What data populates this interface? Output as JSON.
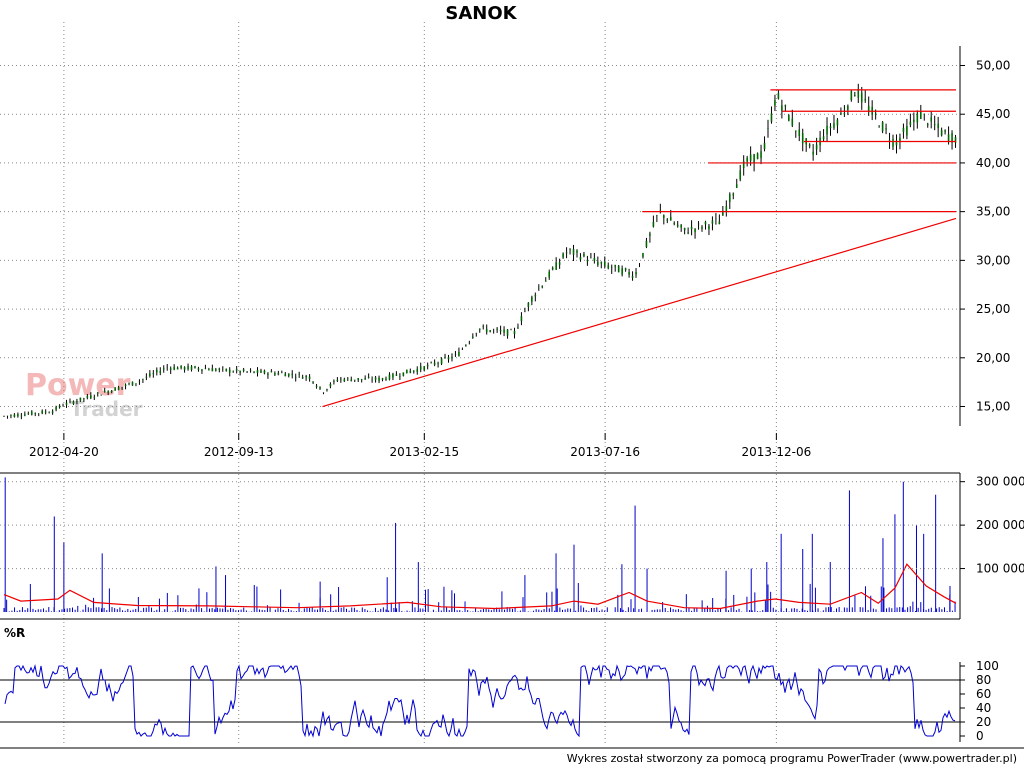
{
  "chart_data": {
    "title": "SANOK",
    "price_panel": {
      "type": "bar",
      "ylim": [
        13,
        52
      ],
      "ytick_labels": [
        {
          "value": 50,
          "text": "50,00"
        },
        {
          "value": 45,
          "text": "45,00"
        },
        {
          "value": 40,
          "text": "40,00"
        },
        {
          "value": 35,
          "text": "35,00"
        },
        {
          "value": 30,
          "text": "30,00"
        },
        {
          "value": 25,
          "text": "25,00"
        },
        {
          "value": 20,
          "text": "20,00"
        },
        {
          "value": 15,
          "text": "15,00"
        }
      ],
      "xtick_labels": [
        "2012-04-20",
        "2012-09-13",
        "2013-02-15",
        "2013-07-16",
        "2013-12-06"
      ],
      "xlim": [
        "2012-03-01",
        "2014-05-05"
      ],
      "price_path": [
        [
          "2012-03-01",
          14.0
        ],
        [
          "2012-04-10",
          14.5
        ],
        [
          "2012-04-20",
          15.2
        ],
        [
          "2012-05-20",
          16.3
        ],
        [
          "2012-06-20",
          17.5
        ],
        [
          "2012-07-15",
          19.0
        ],
        [
          "2012-08-15",
          18.9
        ],
        [
          "2012-09-13",
          18.6
        ],
        [
          "2012-10-20",
          18.4
        ],
        [
          "2012-11-12",
          18.0
        ],
        [
          "2012-11-22",
          16.5
        ],
        [
          "2012-12-05",
          17.8
        ],
        [
          "2013-01-10",
          17.8
        ],
        [
          "2013-02-15",
          19.0
        ],
        [
          "2013-03-15",
          20.3
        ],
        [
          "2013-04-01",
          23.0
        ],
        [
          "2013-05-01",
          22.5
        ],
        [
          "2013-05-15",
          26.0
        ],
        [
          "2013-06-15",
          31.0
        ],
        [
          "2013-07-16",
          29.5
        ],
        [
          "2013-08-10",
          28.5
        ],
        [
          "2013-08-30",
          35.0
        ],
        [
          "2013-09-20",
          33.0
        ],
        [
          "2013-10-20",
          34.0
        ],
        [
          "2013-11-10",
          40.0
        ],
        [
          "2013-11-25",
          41.0
        ],
        [
          "2013-12-06",
          47.0
        ],
        [
          "2013-12-20",
          44.0
        ],
        [
          "2014-01-05",
          41.0
        ],
        [
          "2014-01-15",
          43.0
        ],
        [
          "2014-01-30",
          45.0
        ],
        [
          "2014-02-10",
          47.5
        ],
        [
          "2014-02-25",
          45.0
        ],
        [
          "2014-03-15",
          42.0
        ],
        [
          "2014-04-05",
          45.0
        ],
        [
          "2014-04-25",
          43.0
        ],
        [
          "2014-05-05",
          42.5
        ]
      ],
      "trendline": {
        "from": [
          "2012-11-22",
          15.0
        ],
        "to": [
          "2014-05-05",
          34.3
        ]
      },
      "horizontal_lines": [
        {
          "from": "2013-12-01",
          "to": "2014-05-05",
          "y": 47.5
        },
        {
          "from": "2013-12-11",
          "to": "2014-05-05",
          "y": 45.3
        },
        {
          "from": "2013-12-29",
          "to": "2014-05-05",
          "y": 42.2
        },
        {
          "from": "2013-10-10",
          "to": "2014-05-05",
          "y": 40.0
        },
        {
          "from": "2013-08-16",
          "to": "2014-05-05",
          "y": 35.0
        }
      ]
    },
    "volume_panel": {
      "type": "bar",
      "ylim": [
        0,
        320000
      ],
      "ytick_labels": [
        {
          "value": 300000,
          "text": "300 000"
        },
        {
          "value": 200000,
          "text": "200 000"
        },
        {
          "value": 100000,
          "text": "100 000"
        }
      ],
      "spikes": [
        [
          "2012-03-02",
          310000
        ],
        [
          "2012-04-12",
          220000
        ],
        [
          "2012-04-20",
          160000
        ],
        [
          "2012-05-22",
          135000
        ],
        [
          "2012-08-25",
          105000
        ],
        [
          "2012-09-02",
          85000
        ],
        [
          "2012-11-20",
          70000
        ],
        [
          "2013-01-15",
          80000
        ],
        [
          "2013-01-22",
          205000
        ],
        [
          "2013-02-10",
          115000
        ],
        [
          "2013-03-10",
          50000
        ],
        [
          "2013-05-10",
          85000
        ],
        [
          "2013-06-05",
          135000
        ],
        [
          "2013-06-20",
          155000
        ],
        [
          "2013-07-30",
          110000
        ],
        [
          "2013-08-10",
          245000
        ],
        [
          "2013-08-20",
          100000
        ],
        [
          "2013-10-25",
          95000
        ],
        [
          "2013-11-15",
          100000
        ],
        [
          "2013-11-28",
          115000
        ],
        [
          "2013-12-10",
          180000
        ],
        [
          "2013-12-28",
          145000
        ],
        [
          "2014-01-05",
          180000
        ],
        [
          "2014-01-20",
          115000
        ],
        [
          "2014-02-05",
          280000
        ],
        [
          "2014-03-05",
          170000
        ],
        [
          "2014-03-15",
          225000
        ],
        [
          "2014-03-22",
          300000
        ],
        [
          "2014-04-02",
          200000
        ],
        [
          "2014-04-08",
          180000
        ],
        [
          "2014-04-18",
          270000
        ],
        [
          "2014-04-30",
          60000
        ]
      ],
      "moving_average": [
        [
          "2012-03-01",
          40000
        ],
        [
          "2012-03-15",
          25000
        ],
        [
          "2012-04-15",
          30000
        ],
        [
          "2012-04-25",
          50000
        ],
        [
          "2012-05-15",
          22000
        ],
        [
          "2012-06-20",
          15000
        ],
        [
          "2012-08-20",
          14000
        ],
        [
          "2012-09-25",
          12000
        ],
        [
          "2012-11-01",
          10000
        ],
        [
          "2012-12-15",
          14000
        ],
        [
          "2013-02-01",
          22000
        ],
        [
          "2013-03-01",
          12000
        ],
        [
          "2013-04-15",
          8000
        ],
        [
          "2013-06-01",
          14000
        ],
        [
          "2013-06-20",
          25000
        ],
        [
          "2013-07-10",
          18000
        ],
        [
          "2013-08-05",
          45000
        ],
        [
          "2013-08-20",
          25000
        ],
        [
          "2013-09-20",
          10000
        ],
        [
          "2013-10-20",
          8000
        ],
        [
          "2013-11-20",
          25000
        ],
        [
          "2013-12-05",
          30000
        ],
        [
          "2013-12-25",
          22000
        ],
        [
          "2014-01-20",
          18000
        ],
        [
          "2014-02-15",
          45000
        ],
        [
          "2014-03-01",
          20000
        ],
        [
          "2014-03-15",
          55000
        ],
        [
          "2014-03-25",
          110000
        ],
        [
          "2014-04-10",
          60000
        ],
        [
          "2014-04-25",
          35000
        ],
        [
          "2014-05-05",
          20000
        ]
      ]
    },
    "williams_panel": {
      "type": "line",
      "label": "%R",
      "ylim": [
        0,
        100
      ],
      "ytick_labels": [
        {
          "value": 100,
          "text": "100"
        },
        {
          "value": 80,
          "text": "80"
        },
        {
          "value": 60,
          "text": "60"
        },
        {
          "value": 40,
          "text": "40"
        },
        {
          "value": 20,
          "text": "20"
        },
        {
          "value": 0,
          "text": "0"
        }
      ],
      "reference_lines": [
        80,
        20
      ]
    },
    "watermark": {
      "line1": "Power",
      "line2": "Trader"
    },
    "footer": "Wykres został stworzony za pomocą programu PowerTrader (www.powertrader.pl)",
    "colors": {
      "candle": "#006600",
      "volume": "#0000cc",
      "ma": "#ee0000",
      "trend": "#ee0000",
      "wr": "#0000cc",
      "grid": "#8a8a8a"
    }
  }
}
